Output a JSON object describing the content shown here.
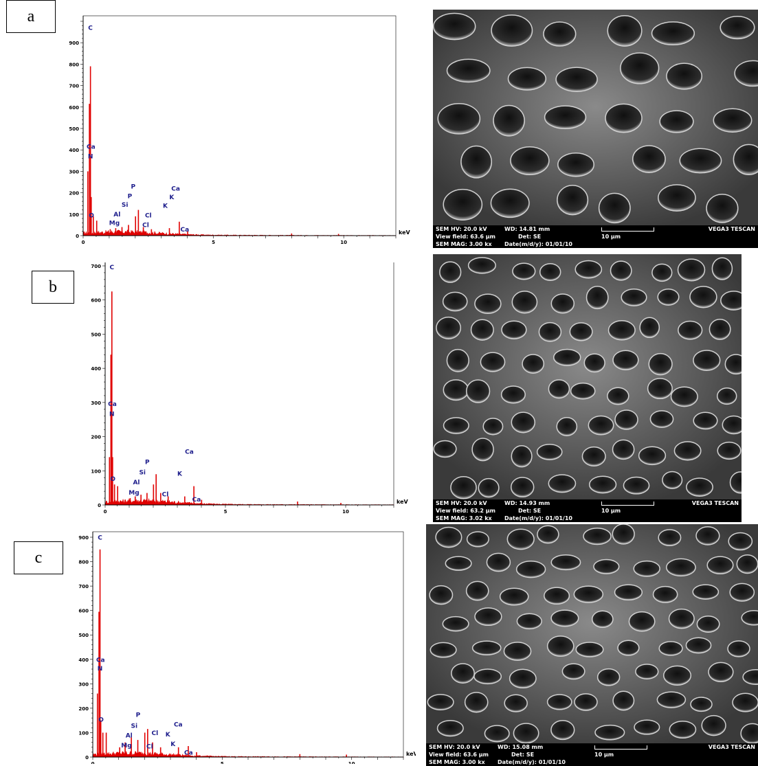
{
  "panels": [
    {
      "tag": "a",
      "chart_data": {
        "type": "line",
        "title": "",
        "xlabel": "keV",
        "ylabel": "",
        "xlim": [
          0,
          12
        ],
        "ylim": [
          0,
          1000
        ],
        "xticks": [
          0,
          5,
          10
        ],
        "yticks": [
          0,
          100,
          200,
          300,
          400,
          500,
          600,
          700,
          800,
          900
        ],
        "peaks": [
          {
            "keV": 0.18,
            "count": 300
          },
          {
            "keV": 0.24,
            "count": 615
          },
          {
            "keV": 0.28,
            "count": 790
          },
          {
            "keV": 0.31,
            "count": 180
          },
          {
            "keV": 0.39,
            "count": 90
          },
          {
            "keV": 0.52,
            "count": 70
          },
          {
            "keV": 1.04,
            "count": 30
          },
          {
            "keV": 1.25,
            "count": 35
          },
          {
            "keV": 1.49,
            "count": 40
          },
          {
            "keV": 1.74,
            "count": 50
          },
          {
            "keV": 2.01,
            "count": 90
          },
          {
            "keV": 2.12,
            "count": 120
          },
          {
            "keV": 2.31,
            "count": 40
          },
          {
            "keV": 2.62,
            "count": 30
          },
          {
            "keV": 3.31,
            "count": 35
          },
          {
            "keV": 3.69,
            "count": 65
          },
          {
            "keV": 4.01,
            "count": 20
          },
          {
            "keV": 8.0,
            "count": 10
          },
          {
            "keV": 9.8,
            "count": 8
          }
        ],
        "labels": [
          {
            "text": "C",
            "keV": 0.28,
            "count": 960
          },
          {
            "text": "Ca",
            "keV": 0.3,
            "count": 405
          },
          {
            "text": "N",
            "keV": 0.28,
            "count": 360
          },
          {
            "text": "O",
            "keV": 0.32,
            "count": 85
          },
          {
            "text": "Mg",
            "keV": 1.2,
            "count": 50
          },
          {
            "text": "Al",
            "keV": 1.3,
            "count": 90
          },
          {
            "text": "Si",
            "keV": 1.6,
            "count": 135
          },
          {
            "text": "P",
            "keV": 1.79,
            "count": 175
          },
          {
            "text": "P",
            "keV": 1.92,
            "count": 220
          },
          {
            "text": "Cl",
            "keV": 2.5,
            "count": 85
          },
          {
            "text": "Cl",
            "keV": 2.4,
            "count": 40
          },
          {
            "text": "K",
            "keV": 3.15,
            "count": 130
          },
          {
            "text": "K",
            "keV": 3.4,
            "count": 170
          },
          {
            "text": "Ca",
            "keV": 3.55,
            "count": 210
          },
          {
            "text": "Ca",
            "keV": 3.9,
            "count": 20
          }
        ]
      },
      "sem": {
        "hv": "SEM HV: 20.0 kV",
        "wd": "WD: 14.81 mm",
        "view_field": "View field: 63.6 μm",
        "det": "Det: SE",
        "scale": "10 μm",
        "mag": "SEM MAG: 3.00 kx",
        "date": "Date(m/d/y): 01/01/10",
        "brand": "VEGA3 TESCAN"
      }
    },
    {
      "tag": "b",
      "chart_data": {
        "type": "line",
        "title": "",
        "xlabel": "keV",
        "ylabel": "",
        "xlim": [
          0,
          12
        ],
        "ylim": [
          0,
          700
        ],
        "xticks": [
          0,
          5,
          10
        ],
        "yticks": [
          0,
          100,
          200,
          300,
          400,
          500,
          600,
          700
        ],
        "peaks": [
          {
            "keV": 0.18,
            "count": 140
          },
          {
            "keV": 0.24,
            "count": 440
          },
          {
            "keV": 0.28,
            "count": 625
          },
          {
            "keV": 0.31,
            "count": 140
          },
          {
            "keV": 0.39,
            "count": 60
          },
          {
            "keV": 0.52,
            "count": 55
          },
          {
            "keV": 1.04,
            "count": 20
          },
          {
            "keV": 1.25,
            "count": 25
          },
          {
            "keV": 1.49,
            "count": 30
          },
          {
            "keV": 1.74,
            "count": 35
          },
          {
            "keV": 2.01,
            "count": 60
          },
          {
            "keV": 2.12,
            "count": 90
          },
          {
            "keV": 2.31,
            "count": 35
          },
          {
            "keV": 2.62,
            "count": 25
          },
          {
            "keV": 3.31,
            "count": 25
          },
          {
            "keV": 3.69,
            "count": 55
          },
          {
            "keV": 4.01,
            "count": 15
          },
          {
            "keV": 8.0,
            "count": 10
          },
          {
            "keV": 9.8,
            "count": 6
          }
        ],
        "labels": [
          {
            "text": "C",
            "keV": 0.28,
            "count": 690
          },
          {
            "text": "Ca",
            "keV": 0.3,
            "count": 290
          },
          {
            "text": "N",
            "keV": 0.28,
            "count": 260
          },
          {
            "text": "O",
            "keV": 0.32,
            "count": 70
          },
          {
            "text": "Mg",
            "keV": 1.2,
            "count": 30
          },
          {
            "text": "Al",
            "keV": 1.3,
            "count": 60
          },
          {
            "text": "Si",
            "keV": 1.55,
            "count": 90
          },
          {
            "text": "P",
            "keV": 1.75,
            "count": 120
          },
          {
            "text": "Cl",
            "keV": 2.5,
            "count": 25
          },
          {
            "text": "K",
            "keV": 3.1,
            "count": 85
          },
          {
            "text": "Ca",
            "keV": 3.5,
            "count": 150
          },
          {
            "text": "Ca",
            "keV": 3.8,
            "count": 10
          }
        ]
      },
      "sem": {
        "hv": "SEM HV: 20.0 kV",
        "wd": "WD: 14.93 mm",
        "view_field": "View field: 63.2 μm",
        "det": "Det: SE",
        "scale": "10 μm",
        "mag": "SEM MAG: 3.02 kx",
        "date": "Date(m/d/y): 01/01/10",
        "brand": "VEGA3 TESCAN"
      }
    },
    {
      "tag": "c",
      "chart_data": {
        "type": "line",
        "title": "",
        "xlabel": "keV",
        "ylabel": "",
        "xlim": [
          0,
          12
        ],
        "ylim": [
          0,
          900
        ],
        "xticks": [
          0,
          5,
          10
        ],
        "yticks": [
          0,
          100,
          200,
          300,
          400,
          500,
          600,
          700,
          800,
          900
        ],
        "peaks": [
          {
            "keV": 0.18,
            "count": 260
          },
          {
            "keV": 0.24,
            "count": 595
          },
          {
            "keV": 0.28,
            "count": 850
          },
          {
            "keV": 0.31,
            "count": 150
          },
          {
            "keV": 0.39,
            "count": 100
          },
          {
            "keV": 0.52,
            "count": 100
          },
          {
            "keV": 1.04,
            "count": 40
          },
          {
            "keV": 1.25,
            "count": 60
          },
          {
            "keV": 1.49,
            "count": 80
          },
          {
            "keV": 1.74,
            "count": 70
          },
          {
            "keV": 2.01,
            "count": 100
          },
          {
            "keV": 2.12,
            "count": 115
          },
          {
            "keV": 2.31,
            "count": 60
          },
          {
            "keV": 2.62,
            "count": 40
          },
          {
            "keV": 3.31,
            "count": 40
          },
          {
            "keV": 3.69,
            "count": 45
          },
          {
            "keV": 4.01,
            "count": 20
          },
          {
            "keV": 8.0,
            "count": 12
          },
          {
            "keV": 9.8,
            "count": 10
          }
        ],
        "labels": [
          {
            "text": "C",
            "keV": 0.28,
            "count": 890
          },
          {
            "text": "Ca",
            "keV": 0.3,
            "count": 390
          },
          {
            "text": "N",
            "keV": 0.28,
            "count": 355
          },
          {
            "text": "O",
            "keV": 0.32,
            "count": 145
          },
          {
            "text": "Mg",
            "keV": 1.3,
            "count": 40
          },
          {
            "text": "Al",
            "keV": 1.4,
            "count": 80
          },
          {
            "text": "Si",
            "keV": 1.6,
            "count": 120
          },
          {
            "text": "P",
            "keV": 1.75,
            "count": 165
          },
          {
            "text": "Cl",
            "keV": 2.4,
            "count": 90
          },
          {
            "text": "Cl",
            "keV": 2.2,
            "count": 35
          },
          {
            "text": "K",
            "keV": 2.9,
            "count": 85
          },
          {
            "text": "K",
            "keV": 3.1,
            "count": 45
          },
          {
            "text": "Ca",
            "keV": 3.3,
            "count": 125
          },
          {
            "text": "Ca",
            "keV": 3.7,
            "count": 10
          }
        ]
      },
      "sem": {
        "hv": "SEM HV: 20.0 kV",
        "wd": "WD: 15.08 mm",
        "view_field": "View field: 63.6 μm",
        "det": "Det: SE",
        "scale": "10 μm",
        "mag": "SEM MAG: 3.00 kx",
        "date": "Date(m/d/y): 01/01/10",
        "brand": "VEGA3 TESCAN"
      }
    }
  ],
  "colors": {
    "spectrum": "#e00000",
    "label": "#1e1e8c",
    "axis": "#000000"
  }
}
